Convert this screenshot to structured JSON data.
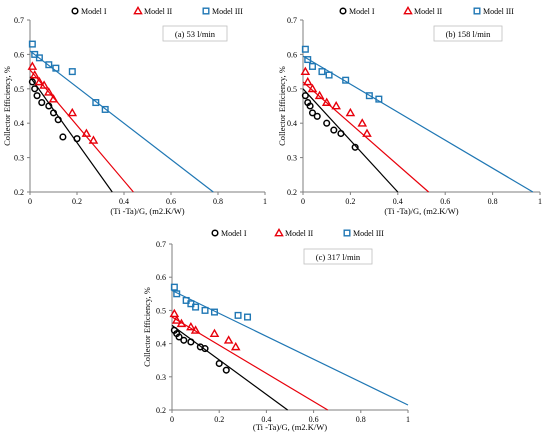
{
  "chart_data": [
    {
      "type": "scatter",
      "title": "",
      "annotation": "(a) 53 l/min",
      "xlabel": "(Ti -Ta)/G, (m2.K/W)",
      "ylabel": "Collector Efficiency, %",
      "xlim": [
        0,
        1
      ],
      "ylim": [
        0.2,
        0.7
      ],
      "x_ticks": [
        "0",
        "0.2",
        "0.4",
        "0.6",
        "0.8",
        "1"
      ],
      "y_ticks": [
        "0.2",
        "0.3",
        "0.4",
        "0.5",
        "0.6",
        "0.7"
      ],
      "grid": false,
      "legend_position": "top",
      "series": [
        {
          "name": "Model I",
          "marker": "circle",
          "color": "#000000",
          "x": [
            0.01,
            0.02,
            0.03,
            0.05,
            0.08,
            0.1,
            0.12,
            0.14,
            0.2
          ],
          "y": [
            0.52,
            0.5,
            0.48,
            0.46,
            0.45,
            0.43,
            0.41,
            0.36,
            0.355
          ],
          "fit": [
            [
              0,
              0.535
            ],
            [
              0.35,
              0.2
            ]
          ]
        },
        {
          "name": "Model II",
          "marker": "triangle",
          "color": "#e8000b",
          "x": [
            0.01,
            0.02,
            0.04,
            0.06,
            0.08,
            0.1,
            0.18,
            0.24,
            0.27
          ],
          "y": [
            0.565,
            0.54,
            0.52,
            0.51,
            0.49,
            0.47,
            0.43,
            0.37,
            0.35
          ],
          "fit": [
            [
              0,
              0.555
            ],
            [
              0.44,
              0.2
            ]
          ]
        },
        {
          "name": "Model III",
          "marker": "square",
          "color": "#1f77b4",
          "x": [
            0.01,
            0.02,
            0.04,
            0.08,
            0.11,
            0.18,
            0.28,
            0.32
          ],
          "y": [
            0.63,
            0.6,
            0.59,
            0.57,
            0.56,
            0.55,
            0.46,
            0.44
          ],
          "fit": [
            [
              0,
              0.61
            ],
            [
              0.78,
              0.2
            ]
          ]
        }
      ]
    },
    {
      "type": "scatter",
      "title": "",
      "annotation": "(b) 158 l/min",
      "xlabel": "(Ti -Ta)/G, (m2.K/W)",
      "ylabel": "Collector Efficiency, %",
      "xlim": [
        0,
        1
      ],
      "ylim": [
        0.2,
        0.7
      ],
      "x_ticks": [
        "0",
        "0.2",
        "0.4",
        "0.6",
        "0.8",
        "1"
      ],
      "y_ticks": [
        "0.2",
        "0.3",
        "0.4",
        "0.5",
        "0.6",
        "0.7"
      ],
      "grid": false,
      "legend_position": "top",
      "series": [
        {
          "name": "Model I",
          "marker": "circle",
          "color": "#000000",
          "x": [
            0.01,
            0.02,
            0.03,
            0.04,
            0.06,
            0.1,
            0.13,
            0.16,
            0.22
          ],
          "y": [
            0.48,
            0.46,
            0.45,
            0.43,
            0.42,
            0.4,
            0.38,
            0.37,
            0.33
          ],
          "fit": [
            [
              0,
              0.5
            ],
            [
              0.4,
              0.2
            ]
          ]
        },
        {
          "name": "Model II",
          "marker": "triangle",
          "color": "#e8000b",
          "x": [
            0.01,
            0.02,
            0.04,
            0.07,
            0.1,
            0.14,
            0.2,
            0.25,
            0.27
          ],
          "y": [
            0.55,
            0.52,
            0.5,
            0.48,
            0.46,
            0.45,
            0.43,
            0.4,
            0.37
          ],
          "fit": [
            [
              0,
              0.52
            ],
            [
              0.53,
              0.2
            ]
          ]
        },
        {
          "name": "Model III",
          "marker": "square",
          "color": "#1f77b4",
          "x": [
            0.01,
            0.02,
            0.04,
            0.08,
            0.11,
            0.18,
            0.28,
            0.32
          ],
          "y": [
            0.615,
            0.585,
            0.565,
            0.55,
            0.54,
            0.525,
            0.48,
            0.47
          ],
          "fit": [
            [
              0,
              0.595
            ],
            [
              0.97,
              0.2
            ]
          ]
        }
      ]
    },
    {
      "type": "scatter",
      "title": "",
      "annotation": "(c) 317 l/min",
      "xlabel": "(Ti -Ta)/G, (m2.K/W)",
      "ylabel": "Collector Efficiency, %",
      "xlim": [
        0,
        1
      ],
      "ylim": [
        0.2,
        0.7
      ],
      "x_ticks": [
        "0",
        "0.2",
        "0.4",
        "0.6",
        "0.8",
        "1"
      ],
      "y_ticks": [
        "0.2",
        "0.3",
        "0.4",
        "0.5",
        "0.6",
        "0.7"
      ],
      "grid": false,
      "legend_position": "top",
      "series": [
        {
          "name": "Model I",
          "marker": "circle",
          "color": "#000000",
          "x": [
            0.01,
            0.02,
            0.03,
            0.05,
            0.08,
            0.12,
            0.14,
            0.2,
            0.23
          ],
          "y": [
            0.44,
            0.43,
            0.42,
            0.41,
            0.405,
            0.39,
            0.385,
            0.34,
            0.32
          ],
          "fit": [
            [
              0,
              0.455
            ],
            [
              0.49,
              0.2
            ]
          ]
        },
        {
          "name": "Model II",
          "marker": "triangle",
          "color": "#e8000b",
          "x": [
            0.01,
            0.02,
            0.04,
            0.08,
            0.1,
            0.18,
            0.24,
            0.27
          ],
          "y": [
            0.49,
            0.47,
            0.46,
            0.45,
            0.44,
            0.43,
            0.41,
            0.39
          ],
          "fit": [
            [
              0,
              0.48
            ],
            [
              0.66,
              0.2
            ]
          ]
        },
        {
          "name": "Model III",
          "marker": "square",
          "color": "#1f77b4",
          "x": [
            0.01,
            0.02,
            0.06,
            0.08,
            0.1,
            0.14,
            0.18,
            0.28,
            0.32
          ],
          "y": [
            0.57,
            0.55,
            0.53,
            0.52,
            0.51,
            0.5,
            0.495,
            0.485,
            0.48
          ],
          "fit": [
            [
              0,
              0.56
            ],
            [
              1.0,
              0.215
            ]
          ]
        }
      ]
    }
  ]
}
